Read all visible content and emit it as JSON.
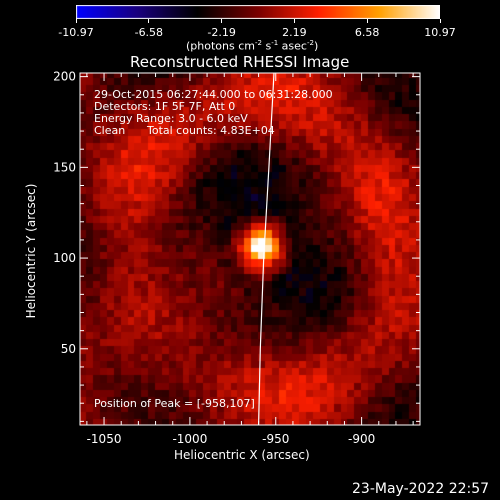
{
  "colorbar": {
    "ticks": [
      "-10.97",
      "-6.58",
      "-2.19",
      "2.19",
      "6.58",
      "10.97"
    ],
    "tick_values": [
      -10.97,
      -6.58,
      -2.19,
      2.19,
      6.58,
      10.97
    ],
    "units_prefix": "(photons cm",
    "units_sup1": "-2",
    "units_mid": " s",
    "units_sup2": "-1",
    "units_mid2": " asec",
    "units_sup3": "-2",
    "units_suffix": ")",
    "colors": [
      "#0000ff",
      "#1a0080",
      "#000000",
      "#7a0000",
      "#ff2000",
      "#ffa000",
      "#ffffff"
    ]
  },
  "title": "Reconstructed RHESSI Image",
  "info": {
    "time": "29-Oct-2015 06:27:44.000 to 06:31:28.000",
    "detectors": "Detectors: 1F 5F 7F, Att 0",
    "energy": "Energy Range: 3.0 - 6.0 keV",
    "clean": "Clean",
    "counts": "Total counts: 4.83E+04"
  },
  "peak_label": "Position of Peak = [-958,107]",
  "footer_date": "23-May-2022 22:57",
  "chart_data": {
    "type": "heatmap",
    "xlabel": "Heliocentric X (arcsec)",
    "ylabel": "Heliocentric Y (arcsec)",
    "xlim": [
      -1064,
      -866
    ],
    "ylim": [
      8,
      202
    ],
    "xticks": [
      -1050,
      -1000,
      -950,
      -900
    ],
    "xtick_labels": [
      "-1050",
      "-1000",
      "-950",
      "-900"
    ],
    "yticks": [
      50,
      100,
      150,
      200
    ],
    "ytick_labels": [
      "50",
      "100",
      "150",
      "200"
    ],
    "peak": {
      "x": -958,
      "y": 107,
      "value": 10.97
    },
    "limb": [
      [
        -960,
        8
      ],
      [
        -959,
        50
      ],
      [
        -957,
        100
      ],
      [
        -954,
        150
      ],
      [
        -951,
        202
      ]
    ],
    "grid_step_arcsec": 4
  }
}
